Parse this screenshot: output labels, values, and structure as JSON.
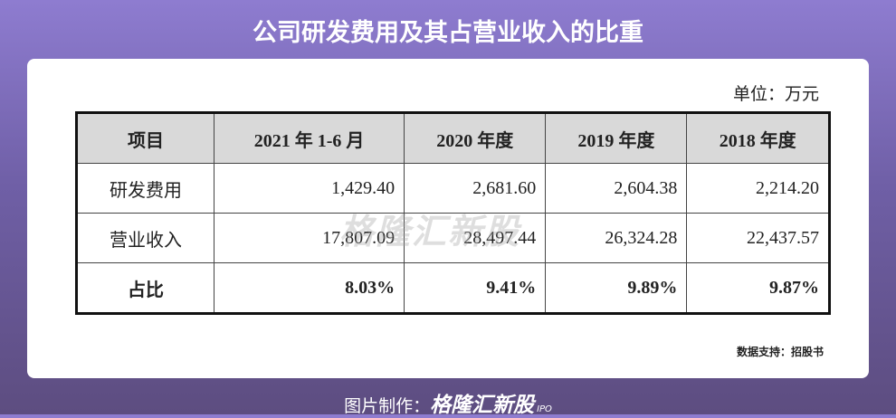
{
  "header": {
    "title": "公司研发费用及其占营业收入的比重"
  },
  "unit": "单位：万元",
  "table": {
    "columns": [
      "项目",
      "2021 年 1-6 月",
      "2020 年度",
      "2019 年度",
      "2018 年度"
    ],
    "rows": [
      [
        "研发费用",
        "1,429.40",
        "2,681.60",
        "2,604.38",
        "2,214.20"
      ],
      [
        "营业收入",
        "17,807.09",
        "28,497.44",
        "26,324.28",
        "22,437.57"
      ],
      [
        "占比",
        "8.03%",
        "9.41%",
        "9.89%",
        "9.87%"
      ]
    ]
  },
  "watermark": "格隆汇新股",
  "source": "数据支持：招股书",
  "footer": {
    "label": "图片制作：",
    "logo": "格隆汇新股",
    "logo_suffix": "IPO"
  }
}
